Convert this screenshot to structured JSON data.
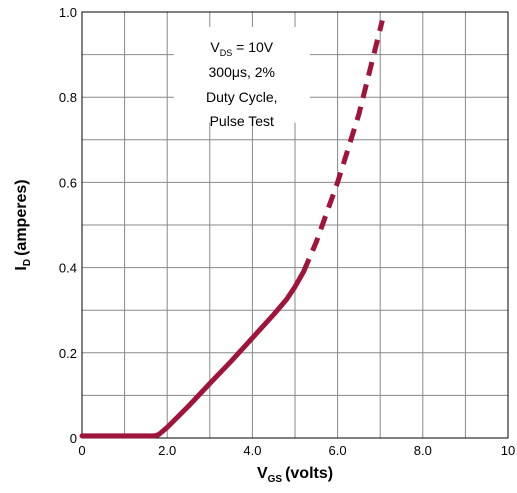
{
  "chart_data": {
    "type": "line",
    "x_axis": {
      "label_main": "V",
      "label_sub": "GS",
      "label_rest": "(volts)",
      "ticks": [
        "0",
        "2.0",
        "4.0",
        "6.0",
        "8.0",
        "10"
      ],
      "range": [
        0,
        10
      ],
      "minor_step": 1
    },
    "y_axis": {
      "label_main": "I",
      "label_sub": "D",
      "label_rest": "(amperes)",
      "ticks": [
        "0",
        "0.2",
        "0.4",
        "0.6",
        "0.8",
        "1.0"
      ],
      "range": [
        0,
        1.0
      ],
      "minor_step": 0.1
    },
    "grid": true,
    "series": [
      {
        "color": "#A0143C",
        "style": "solid",
        "points": [
          [
            0,
            0.005
          ],
          [
            1.7,
            0.005
          ],
          [
            1.8,
            0.008
          ],
          [
            2.0,
            0.025
          ],
          [
            2.5,
            0.075
          ],
          [
            3.0,
            0.128
          ],
          [
            3.5,
            0.18
          ],
          [
            4.0,
            0.235
          ],
          [
            4.5,
            0.29
          ],
          [
            4.8,
            0.325
          ],
          [
            5.0,
            0.355
          ],
          [
            5.2,
            0.39
          ]
        ]
      },
      {
        "color": "#A0143C",
        "style": "dashed",
        "points": [
          [
            5.2,
            0.39
          ],
          [
            5.5,
            0.46
          ],
          [
            6.0,
            0.6
          ],
          [
            6.5,
            0.76
          ],
          [
            7.05,
            0.98
          ]
        ]
      }
    ],
    "annotation": {
      "line1_main": "V",
      "line1_sub": "DS",
      "line1_rest": " = 10V",
      "line2": "300μs, 2%",
      "line3": "Duty Cycle,",
      "line4": "Pulse Test"
    }
  }
}
